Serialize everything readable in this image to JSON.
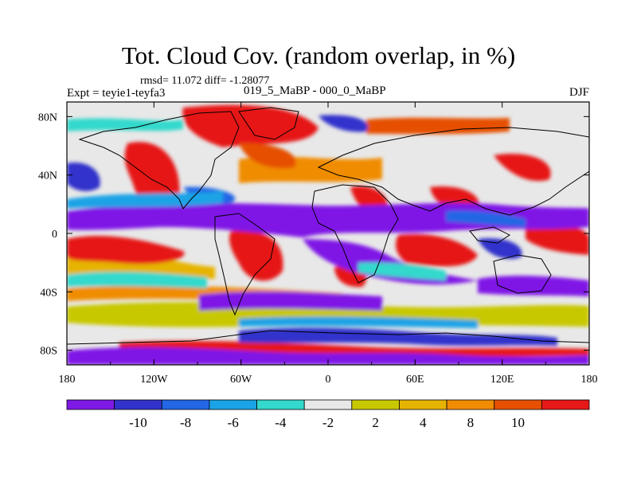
{
  "header": {
    "title": "Tot. Cloud Cov. (random overlap, in %)",
    "stats": "rmsd= 11.072 diff= -1.28077",
    "expt": "Expt = teyie1-teyfa3",
    "period": "019_5_MaBP - 000_0_MaBP",
    "season": "DJF"
  },
  "axes": {
    "lon_ticks": [
      {
        "value": -180,
        "label": "180"
      },
      {
        "value": -120,
        "label": "120W"
      },
      {
        "value": -60,
        "label": "60W"
      },
      {
        "value": 0,
        "label": "0"
      },
      {
        "value": 60,
        "label": "60E"
      },
      {
        "value": 120,
        "label": "120E"
      },
      {
        "value": 180,
        "label": "180"
      }
    ],
    "lat_ticks": [
      {
        "value": 80,
        "label": "80N"
      },
      {
        "value": 40,
        "label": "40N"
      },
      {
        "value": 0,
        "label": "0"
      },
      {
        "value": -40,
        "label": "40S"
      },
      {
        "value": -80,
        "label": "80S"
      }
    ]
  },
  "colorbar": {
    "colors": [
      "#7f19e6",
      "#3232cc",
      "#2366e6",
      "#1aa3e6",
      "#33d9cc",
      "#e8e8e8",
      "#c8c800",
      "#e6b400",
      "#f08c00",
      "#e65000",
      "#e61919"
    ],
    "labels": [
      "-10",
      "-8",
      "-6",
      "-4",
      "-2",
      "2",
      "4",
      "8",
      "10"
    ]
  }
}
